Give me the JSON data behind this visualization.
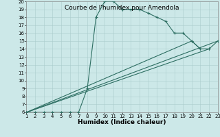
{
  "title": "Courbe de l'humidex pour Amendola",
  "xlabel": "Humidex (Indice chaleur)",
  "bg_color": "#cce8e8",
  "grid_color": "#aacccc",
  "line_color": "#2d6e62",
  "xlim": [
    1,
    23
  ],
  "ylim": [
    6,
    20
  ],
  "xticks": [
    1,
    2,
    3,
    4,
    5,
    6,
    7,
    8,
    9,
    10,
    11,
    12,
    13,
    14,
    15,
    16,
    17,
    18,
    19,
    20,
    21,
    22,
    23
  ],
  "yticks": [
    6,
    7,
    8,
    9,
    10,
    11,
    12,
    13,
    14,
    15,
    16,
    17,
    18,
    19,
    20
  ],
  "line1_x": [
    1,
    2,
    3,
    4,
    5,
    6,
    7,
    8,
    9,
    10,
    11,
    12,
    13,
    14,
    15,
    16,
    17,
    18,
    19,
    20,
    21,
    22
  ],
  "line1_y": [
    6,
    6,
    6,
    6,
    6,
    6,
    6,
    9,
    18,
    20,
    20,
    19,
    19,
    19,
    18.5,
    18,
    17.5,
    16,
    16,
    15,
    14,
    14
  ],
  "line2_x": [
    1,
    20,
    21,
    22,
    23
  ],
  "line2_y": [
    6,
    15,
    14,
    14,
    15
  ],
  "line3_x": [
    1,
    22
  ],
  "line3_y": [
    6,
    14
  ],
  "line4_x": [
    1,
    23
  ],
  "line4_y": [
    6,
    15
  ],
  "title_fontsize": 6.5,
  "axis_fontsize": 6.5,
  "tick_fontsize": 5.0
}
